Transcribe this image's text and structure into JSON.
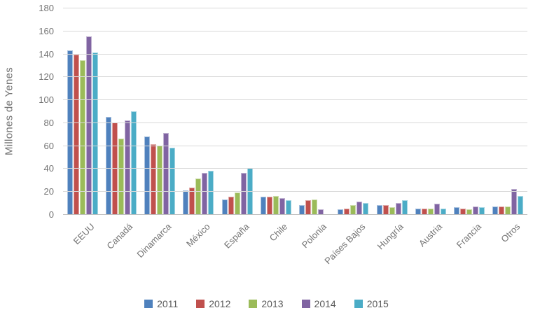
{
  "chart_data": {
    "type": "bar",
    "title": "",
    "ylabel": "Millones de Yenes",
    "xlabel": "",
    "ylim": [
      0,
      180
    ],
    "ytick_step": 20,
    "grid": true,
    "legend_position": "bottom",
    "categories": [
      "EEUU",
      "Canadá",
      "Dinamarca",
      "México",
      "España",
      "Chile",
      "Polonia",
      "Países Bajos",
      "Hungría",
      "Austria",
      "Francia",
      "Otros"
    ],
    "series": [
      {
        "name": "2011",
        "color": "#4F81BD",
        "values": [
          143,
          85,
          68,
          21,
          13,
          15,
          8,
          4,
          8,
          5,
          6,
          7
        ]
      },
      {
        "name": "2012",
        "color": "#C0504D",
        "values": [
          139,
          80,
          61,
          23,
          15,
          15,
          12,
          5,
          8,
          5,
          5,
          7
        ]
      },
      {
        "name": "2013",
        "color": "#9BBB59",
        "values": [
          134,
          66,
          60,
          31,
          19,
          16,
          13,
          8,
          6,
          5,
          4,
          7
        ]
      },
      {
        "name": "2014",
        "color": "#8064A2",
        "values": [
          155,
          82,
          71,
          36,
          36,
          14,
          4,
          11,
          10,
          9,
          7,
          22
        ]
      },
      {
        "name": "2015",
        "color": "#4BACC6",
        "values": [
          141,
          90,
          58,
          38,
          40,
          12,
          0,
          10,
          12,
          5,
          6,
          16
        ]
      }
    ],
    "style_colors": {
      "text": "#737373",
      "gridline": "#D9D9D9",
      "axis_line": "#BFBFBF",
      "background": "#FFFFFF"
    }
  }
}
